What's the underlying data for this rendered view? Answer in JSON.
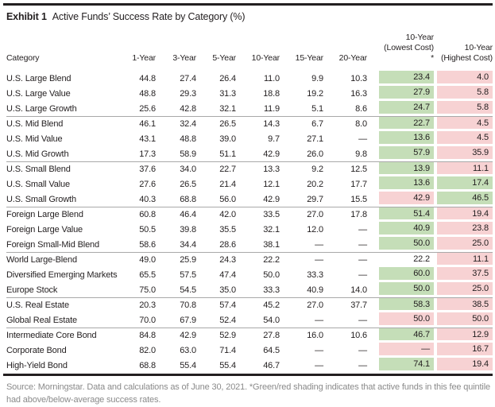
{
  "title": {
    "exhibit": "Exhibit 1",
    "text": "Active Funds’ Success Rate by Category (%)"
  },
  "header": {
    "category": "Category",
    "periods": [
      "1-Year",
      "3-Year",
      "5-Year",
      "10-Year",
      "15-Year",
      "20-Year"
    ],
    "lowest_line1": "10-Year",
    "lowest_line2": "(Lowest Cost) *",
    "highest_line1": "10-Year",
    "highest_line2": "(Highest Cost)"
  },
  "footer": {
    "line1": "Source: Morningstar. Data and calculations as of June 30, 2021. *Green/red shading indicates that active funds in this fee quintile",
    "line2": "had above/below-average success rates."
  },
  "colors": {
    "green_shade": "#c5deb8",
    "red_shade": "#f7d2d3",
    "rule": "#231f20",
    "divider": "#a9a9a9",
    "footer_gray": "#8a8a8a"
  },
  "chart_data": {
    "type": "table",
    "title": "Exhibit 1  Active Funds’ Success Rate by Category (%)",
    "columns": [
      "Category",
      "1-Year",
      "3-Year",
      "5-Year",
      "10-Year",
      "15-Year",
      "20-Year",
      "10-Year (Lowest Cost) *",
      "10-Year (Highest Cost)"
    ],
    "shading_legend": "Green/red shading indicates that active funds in this fee quintile had above/below-average success rates",
    "rows": [
      {
        "category": "U.S. Large Blend",
        "values": [
          "44.8",
          "27.4",
          "26.4",
          "11.0",
          "9.9",
          "10.3"
        ],
        "lowest_cost": "23.4",
        "lowest_shade": "green",
        "highest_cost": "4.0",
        "highest_shade": "red",
        "group_start": false
      },
      {
        "category": "U.S. Large Value",
        "values": [
          "48.8",
          "29.3",
          "31.3",
          "18.8",
          "19.2",
          "16.3"
        ],
        "lowest_cost": "27.9",
        "lowest_shade": "green",
        "highest_cost": "5.8",
        "highest_shade": "red",
        "group_start": false
      },
      {
        "category": "U.S. Large Growth",
        "values": [
          "25.6",
          "42.8",
          "32.1",
          "11.9",
          "5.1",
          "8.6"
        ],
        "lowest_cost": "24.7",
        "lowest_shade": "green",
        "highest_cost": "5.8",
        "highest_shade": "red",
        "group_start": false
      },
      {
        "category": "U.S. Mid Blend",
        "values": [
          "46.1",
          "32.4",
          "26.5",
          "14.3",
          "6.7",
          "8.0"
        ],
        "lowest_cost": "22.7",
        "lowest_shade": "green",
        "highest_cost": "4.5",
        "highest_shade": "red",
        "group_start": true
      },
      {
        "category": "U.S. Mid Value",
        "values": [
          "43.1",
          "48.8",
          "39.0",
          "9.7",
          "27.1",
          "—"
        ],
        "lowest_cost": "13.6",
        "lowest_shade": "green",
        "highest_cost": "4.5",
        "highest_shade": "red",
        "group_start": false
      },
      {
        "category": "U.S. Mid Growth",
        "values": [
          "17.3",
          "58.9",
          "51.1",
          "42.9",
          "26.0",
          "9.8"
        ],
        "lowest_cost": "57.9",
        "lowest_shade": "green",
        "highest_cost": "35.9",
        "highest_shade": "red",
        "group_start": false
      },
      {
        "category": "U.S. Small Blend",
        "values": [
          "37.6",
          "34.0",
          "22.7",
          "13.3",
          "9.2",
          "12.5"
        ],
        "lowest_cost": "13.9",
        "lowest_shade": "green",
        "highest_cost": "11.1",
        "highest_shade": "red",
        "group_start": true
      },
      {
        "category": "U.S. Small Value",
        "values": [
          "27.6",
          "26.5",
          "21.4",
          "12.1",
          "20.2",
          "17.7"
        ],
        "lowest_cost": "13.6",
        "lowest_shade": "green",
        "highest_cost": "17.4",
        "highest_shade": "green",
        "group_start": false
      },
      {
        "category": "U.S. Small Growth",
        "values": [
          "40.3",
          "68.8",
          "56.0",
          "42.9",
          "29.7",
          "15.5"
        ],
        "lowest_cost": "42.9",
        "lowest_shade": "red",
        "highest_cost": "46.5",
        "highest_shade": "green",
        "group_start": false
      },
      {
        "category": "Foreign Large Blend",
        "values": [
          "60.8",
          "46.4",
          "42.0",
          "33.5",
          "27.0",
          "17.8"
        ],
        "lowest_cost": "51.4",
        "lowest_shade": "green",
        "highest_cost": "19.4",
        "highest_shade": "red",
        "group_start": true
      },
      {
        "category": "Foreign Large Value",
        "values": [
          "50.5",
          "39.8",
          "35.5",
          "32.1",
          "12.0",
          "—"
        ],
        "lowest_cost": "40.9",
        "lowest_shade": "green",
        "highest_cost": "23.8",
        "highest_shade": "red",
        "group_start": false
      },
      {
        "category": "Foreign Small-Mid Blend",
        "values": [
          "58.6",
          "34.4",
          "28.6",
          "38.1",
          "—",
          "—"
        ],
        "lowest_cost": "50.0",
        "lowest_shade": "green",
        "highest_cost": "25.0",
        "highest_shade": "red",
        "group_start": false
      },
      {
        "category": "World Large-Blend",
        "values": [
          "49.0",
          "25.9",
          "24.3",
          "22.2",
          "—",
          "—"
        ],
        "lowest_cost": "22.2",
        "lowest_shade": "none",
        "highest_cost": "11.1",
        "highest_shade": "red",
        "group_start": true
      },
      {
        "category": "Diversified Emerging Markets",
        "values": [
          "65.5",
          "57.5",
          "47.4",
          "50.0",
          "33.3",
          "—"
        ],
        "lowest_cost": "60.0",
        "lowest_shade": "green",
        "highest_cost": "37.5",
        "highest_shade": "red",
        "group_start": false
      },
      {
        "category": "Europe Stock",
        "values": [
          "75.0",
          "54.5",
          "35.0",
          "33.3",
          "40.9",
          "14.0"
        ],
        "lowest_cost": "50.0",
        "lowest_shade": "green",
        "highest_cost": "25.0",
        "highest_shade": "red",
        "group_start": false
      },
      {
        "category": "U.S. Real Estate",
        "values": [
          "20.3",
          "70.8",
          "57.4",
          "45.2",
          "27.0",
          "37.7"
        ],
        "lowest_cost": "58.3",
        "lowest_shade": "green",
        "highest_cost": "38.5",
        "highest_shade": "red",
        "group_start": true
      },
      {
        "category": "Global Real Estate",
        "values": [
          "70.0",
          "67.9",
          "52.4",
          "54.0",
          "—",
          "—"
        ],
        "lowest_cost": "50.0",
        "lowest_shade": "red",
        "highest_cost": "50.0",
        "highest_shade": "red",
        "group_start": false
      },
      {
        "category": "Intermediate Core Bond",
        "values": [
          "84.8",
          "42.9",
          "52.9",
          "27.8",
          "16.0",
          "10.6"
        ],
        "lowest_cost": "46.7",
        "lowest_shade": "green",
        "highest_cost": "12.9",
        "highest_shade": "red",
        "group_start": true
      },
      {
        "category": "Corporate Bond",
        "values": [
          "82.0",
          "63.0",
          "71.4",
          "64.5",
          "—",
          "—"
        ],
        "lowest_cost": "—",
        "lowest_shade": "red",
        "highest_cost": "16.7",
        "highest_shade": "red",
        "group_start": false
      },
      {
        "category": "High-Yield Bond",
        "values": [
          "68.8",
          "55.4",
          "55.4",
          "46.7",
          "—",
          "—"
        ],
        "lowest_cost": "74.1",
        "lowest_shade": "green",
        "highest_cost": "19.4",
        "highest_shade": "red",
        "group_start": false
      }
    ]
  }
}
